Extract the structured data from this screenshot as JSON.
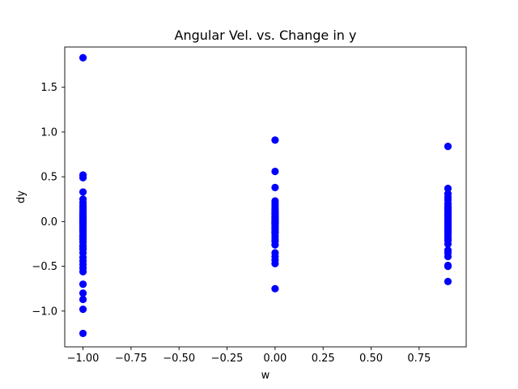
{
  "chart_data": {
    "type": "scatter",
    "title": "Angular Vel. vs. Change in y",
    "xlabel": "w",
    "ylabel": "dy",
    "xlim": [
      -1.095,
      0.995
    ],
    "ylim": [
      -1.4,
      1.95
    ],
    "x_ticks": [
      -1.0,
      -0.75,
      -0.5,
      -0.25,
      0.0,
      0.25,
      0.5,
      0.75
    ],
    "x_tick_labels": [
      "−1.00",
      "−0.75",
      "−0.50",
      "−0.25",
      "0.00",
      "0.25",
      "0.50",
      "0.75"
    ],
    "y_ticks": [
      -1.0,
      -0.5,
      0.0,
      0.5,
      1.0,
      1.5
    ],
    "y_tick_labels": [
      "−1.0",
      "−0.5",
      "0.0",
      "0.5",
      "1.0",
      "1.5"
    ],
    "grid": false,
    "marker_color": "#0000ff",
    "series": [
      {
        "x": [
          -1.0,
          -1.0,
          -1.0,
          -1.0,
          -1.0,
          -1.0,
          -1.0,
          -1.0,
          -1.0,
          -1.0,
          -1.0,
          -1.0,
          -1.0,
          -1.0,
          -1.0,
          -1.0,
          -1.0,
          -1.0,
          -1.0,
          -1.0,
          -1.0,
          -1.0,
          -1.0,
          -1.0,
          -1.0,
          -1.0,
          -1.0,
          -1.0,
          -1.0,
          -1.0,
          -1.0,
          -1.0,
          -1.0,
          -1.0,
          -1.0,
          -1.0,
          -1.0,
          -1.0,
          -1.0,
          -1.0,
          -1.0,
          -1.0,
          -1.0,
          -1.0,
          0.0,
          0.0,
          0.0,
          0.0,
          0.0,
          0.0,
          0.0,
          0.0,
          0.0,
          0.0,
          0.0,
          0.0,
          0.0,
          0.0,
          0.0,
          0.0,
          0.0,
          0.0,
          0.0,
          0.0,
          0.0,
          0.0,
          0.0,
          0.0,
          0.0,
          0.0,
          0.0,
          0.0,
          0.0,
          0.0,
          0.0,
          0.0,
          0.0,
          0.0,
          0.0,
          0.9,
          0.9,
          0.9,
          0.9,
          0.9,
          0.9,
          0.9,
          0.9,
          0.9,
          0.9,
          0.9,
          0.9,
          0.9,
          0.9,
          0.9,
          0.9,
          0.9,
          0.9,
          0.9,
          0.9,
          0.9,
          0.9,
          0.9,
          0.9,
          0.9,
          0.9,
          0.9,
          0.9,
          0.9,
          0.9,
          0.9,
          0.9,
          0.9,
          0.9,
          0.9,
          0.9,
          0.9,
          0.9
        ],
        "y": [
          1.83,
          0.52,
          0.49,
          0.33,
          0.25,
          0.21,
          0.18,
          0.15,
          0.12,
          0.1,
          0.08,
          0.06,
          0.04,
          0.02,
          0.01,
          0.0,
          -0.01,
          -0.02,
          -0.04,
          -0.06,
          -0.08,
          -0.1,
          -0.12,
          -0.15,
          -0.18,
          -0.2,
          -0.23,
          -0.28,
          -0.31,
          -0.35,
          -0.4,
          -0.44,
          -0.48,
          -0.52,
          -0.56,
          -0.7,
          -0.8,
          -0.87,
          -0.98,
          -1.25,
          -0.27,
          -0.05,
          0.03,
          -0.16,
          0.91,
          0.56,
          0.38,
          0.23,
          0.2,
          0.17,
          0.14,
          0.12,
          0.1,
          0.08,
          0.06,
          0.04,
          0.02,
          0.0,
          -0.01,
          -0.03,
          -0.05,
          -0.07,
          -0.09,
          -0.11,
          -0.13,
          -0.16,
          -0.19,
          -0.22,
          -0.26,
          -0.35,
          -0.39,
          -0.43,
          -0.47,
          -0.75,
          0.05,
          -0.02,
          0.09,
          -0.12,
          0.01,
          0.84,
          0.37,
          0.31,
          0.27,
          0.24,
          0.2,
          0.17,
          0.14,
          0.12,
          0.1,
          0.08,
          0.06,
          0.04,
          0.02,
          0.0,
          -0.01,
          -0.03,
          -0.05,
          -0.07,
          -0.09,
          -0.11,
          -0.13,
          -0.15,
          -0.18,
          -0.21,
          -0.25,
          -0.32,
          -0.35,
          -0.39,
          -0.49,
          -0.5,
          -0.67,
          0.03,
          -0.04,
          0.07,
          -0.1,
          0.15,
          -0.2
        ]
      }
    ]
  }
}
